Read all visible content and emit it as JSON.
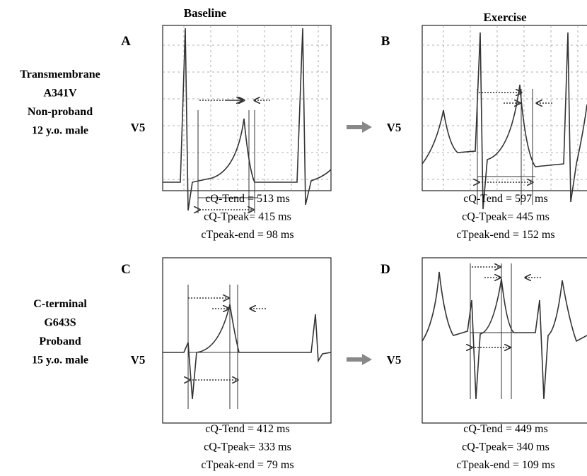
{
  "columns": [
    "Baseline",
    "Exercise"
  ],
  "rows": [
    {
      "label": [
        "Transmembrane",
        "A341V",
        "Non-proband",
        "12 y.o. male"
      ],
      "panels": [
        {
          "letter": "A",
          "lead": "V5",
          "measurements": [
            "cQ-Tend = 513 ms",
            "cQ-Tpeak= 415 ms",
            "cTpeak-end = 98 ms"
          ]
        },
        {
          "letter": "B",
          "lead": "V5",
          "measurements": [
            "cQ-Tend = 597 ms",
            "cQ-Tpeak= 445 ms",
            "cTpeak-end = 152 ms"
          ]
        }
      ]
    },
    {
      "label": [
        "C-terminal",
        "G643S",
        "Proband",
        "15 y.o. male"
      ],
      "panels": [
        {
          "letter": "C",
          "lead": "V5",
          "measurements": [
            "cQ-Tend = 412 ms",
            "cQ-Tpeak= 333 ms",
            "cTpeak-end = 79 ms"
          ]
        },
        {
          "letter": "D",
          "lead": "V5",
          "measurements": [
            "cQ-Tend = 449 ms",
            "cQ-Tpeak= 340 ms",
            "cTpeak-end = 109 ms"
          ]
        }
      ]
    }
  ]
}
